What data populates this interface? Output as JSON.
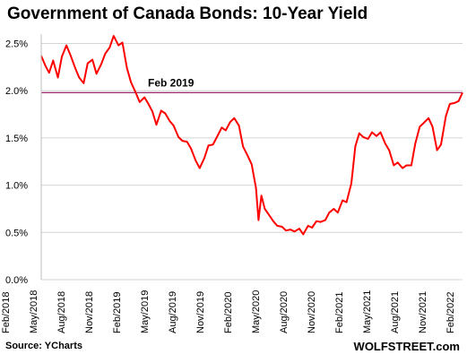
{
  "chart_data": {
    "type": "line",
    "title": "Government of Canada Bonds: 10-Year Yield",
    "xlabel": "",
    "ylabel": "",
    "ylim": [
      0,
      2.6
    ],
    "y_ticks": [
      0.0,
      0.5,
      1.0,
      1.5,
      2.0,
      2.5
    ],
    "y_tick_labels": [
      "0.0%",
      "0.5%",
      "1.0%",
      "1.5%",
      "2.0%",
      "2.5%"
    ],
    "x_tick_labels": [
      "Feb/2018",
      "May/2018",
      "Aug/2018",
      "Nov/2018",
      "Feb/2019",
      "May/2019",
      "Aug/2019",
      "Nov/2019",
      "Feb/2020",
      "May/2020",
      "Aug/2020",
      "Nov/2020",
      "Feb/2021",
      "May/2021",
      "Aug/2021",
      "Nov/2021",
      "Feb/2022"
    ],
    "grid": "horizontal",
    "line_color": "#ff0000",
    "reference_line": {
      "value": 1.98,
      "label": "Feb 2019",
      "color": "#9a2a6a"
    },
    "series": [
      {
        "x": [
          "2018-02",
          "2018-02-15",
          "2018-03",
          "2018-03-15",
          "2018-04",
          "2018-04-15",
          "2018-05",
          "2018-05-15",
          "2018-06",
          "2018-06-15",
          "2018-07",
          "2018-07-15",
          "2018-08",
          "2018-08-15",
          "2018-09",
          "2018-09-15",
          "2018-10",
          "2018-10-15",
          "2018-11",
          "2018-11-15",
          "2018-12",
          "2018-12-15",
          "2019-01",
          "2019-01-15",
          "2019-02",
          "2019-02-15",
          "2019-03",
          "2019-03-15",
          "2019-04",
          "2019-04-15",
          "2019-05",
          "2019-05-15",
          "2019-06",
          "2019-06-15",
          "2019-07",
          "2019-07-15",
          "2019-08",
          "2019-08-15",
          "2019-09",
          "2019-09-15",
          "2019-10",
          "2019-10-15",
          "2019-11",
          "2019-11-15",
          "2019-12",
          "2019-12-15",
          "2020-01",
          "2020-01-15",
          "2020-02",
          "2020-02-15",
          "2020-03",
          "2020-03-10",
          "2020-03-20",
          "2020-04",
          "2020-04-15",
          "2020-05",
          "2020-05-15",
          "2020-06",
          "2020-06-15",
          "2020-07",
          "2020-07-15",
          "2020-08",
          "2020-08-15",
          "2020-09",
          "2020-09-15",
          "2020-10",
          "2020-10-15",
          "2020-11",
          "2020-11-15",
          "2020-12",
          "2020-12-15",
          "2021-01",
          "2021-01-15",
          "2021-02",
          "2021-02-15",
          "2021-03",
          "2021-03-15",
          "2021-04",
          "2021-04-15",
          "2021-05",
          "2021-05-15",
          "2021-06",
          "2021-06-15",
          "2021-07",
          "2021-07-15",
          "2021-08",
          "2021-08-15",
          "2021-09",
          "2021-09-15",
          "2021-10",
          "2021-10-15",
          "2021-11",
          "2021-11-15",
          "2021-12",
          "2021-12-15",
          "2022-01",
          "2022-01-15",
          "2022-02",
          "2022-02-15",
          "2022-03"
        ],
        "y": [
          2.37,
          2.27,
          2.19,
          2.32,
          2.14,
          2.36,
          2.48,
          2.38,
          2.24,
          2.14,
          2.08,
          2.29,
          2.33,
          2.18,
          2.28,
          2.39,
          2.46,
          2.58,
          2.48,
          2.51,
          2.24,
          2.09,
          1.98,
          1.88,
          1.93,
          1.86,
          1.78,
          1.64,
          1.79,
          1.76,
          1.68,
          1.63,
          1.51,
          1.47,
          1.46,
          1.39,
          1.26,
          1.18,
          1.29,
          1.42,
          1.43,
          1.51,
          1.61,
          1.58,
          1.67,
          1.71,
          1.63,
          1.41,
          1.31,
          1.22,
          0.97,
          0.63,
          0.89,
          0.75,
          0.69,
          0.62,
          0.57,
          0.56,
          0.52,
          0.53,
          0.51,
          0.54,
          0.48,
          0.57,
          0.55,
          0.62,
          0.61,
          0.63,
          0.71,
          0.75,
          0.71,
          0.84,
          0.82,
          1.02,
          1.41,
          1.55,
          1.51,
          1.49,
          1.56,
          1.52,
          1.56,
          1.44,
          1.37,
          1.21,
          1.24,
          1.18,
          1.21,
          1.21,
          1.44,
          1.62,
          1.66,
          1.71,
          1.62,
          1.37,
          1.43,
          1.73,
          1.86,
          1.87,
          1.89,
          1.98
        ]
      }
    ]
  },
  "source": "Source: YCharts",
  "watermark": "WOLFSTREET.com"
}
